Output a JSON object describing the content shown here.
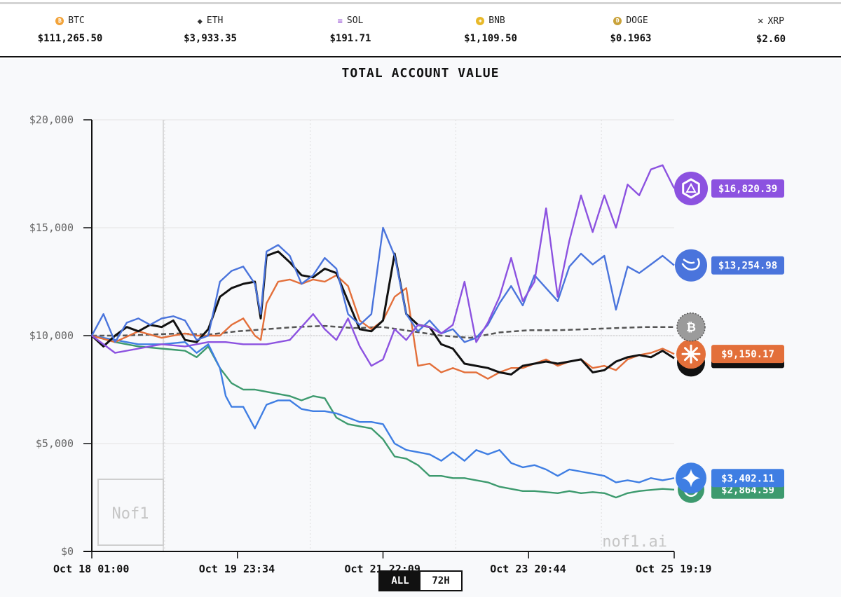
{
  "tickers": [
    {
      "symbol": "BTC",
      "price": "$111,265.50",
      "icon": "bitcoin-icon",
      "color": "#f2a33a"
    },
    {
      "symbol": "ETH",
      "price": "$3,933.35",
      "icon": "ethereum-icon",
      "color": "#333333"
    },
    {
      "symbol": "SOL",
      "price": "$191.71",
      "icon": "solana-icon",
      "color": "#9b59d6"
    },
    {
      "symbol": "BNB",
      "price": "$1,109.50",
      "icon": "bnb-icon",
      "color": "#e8b92a"
    },
    {
      "symbol": "DOGE",
      "price": "$0.1963",
      "icon": "doge-icon",
      "color": "#c9a23a"
    },
    {
      "symbol": "XRP",
      "price": "$2.60",
      "icon": "xrp-icon",
      "color": "#222222"
    }
  ],
  "watermark": {
    "corner_logo_text": "Nof1",
    "site": "nof1.ai"
  },
  "range_toggle": {
    "options": [
      "ALL",
      "72H"
    ],
    "selected": "ALL"
  },
  "chart_data": {
    "type": "line",
    "title": "TOTAL ACCOUNT VALUE",
    "xlabel": "",
    "ylabel": "",
    "x_ticks": [
      "Oct 18 01:00",
      "Oct 19 23:34",
      "Oct 21 22:09",
      "Oct 23 20:44",
      "Oct 25 19:19"
    ],
    "y_ticks": [
      "$20,000",
      "$15,000",
      "$10,000",
      "$5,000",
      "$0"
    ],
    "ylim": [
      0,
      20000
    ],
    "grid": true,
    "baseline": 10000,
    "x_index_range": [
      0,
      100
    ],
    "series": [
      {
        "name": "",
        "color": "#8c52e0",
        "icon": "qwen-logo-icon",
        "label": "$16,820.39",
        "x": [
          0,
          4,
          8,
          12,
          16,
          20,
          23,
          26,
          30,
          34,
          38,
          40,
          42,
          44,
          46,
          48,
          50,
          52,
          54,
          56,
          58,
          60,
          62,
          64,
          66,
          68,
          70,
          72,
          74,
          76,
          78,
          80,
          82,
          84,
          86,
          88,
          90,
          92,
          94,
          96,
          98,
          100
        ],
        "y": [
          10000,
          9200,
          9400,
          9600,
          9500,
          9700,
          9700,
          9600,
          9600,
          9800,
          11000,
          10300,
          9800,
          10800,
          9500,
          8600,
          8900,
          10300,
          9800,
          10500,
          10400,
          10100,
          10500,
          12500,
          9700,
          10600,
          11800,
          13600,
          11600,
          12500,
          15900,
          11800,
          14400,
          16500,
          14800,
          16500,
          15000,
          17000,
          16500,
          17700,
          17900,
          16820
        ]
      },
      {
        "name": "",
        "color": "#4a74dc",
        "icon": "deepseek-logo-icon",
        "label": "$13,254.98",
        "x": [
          0,
          2,
          4,
          6,
          8,
          10,
          12,
          14,
          16,
          18,
          20,
          22,
          24,
          26,
          28,
          29,
          30,
          32,
          34,
          36,
          38,
          40,
          42,
          44,
          46,
          48,
          50,
          52,
          54,
          56,
          58,
          60,
          62,
          64,
          66,
          68,
          70,
          72,
          74,
          76,
          78,
          80,
          82,
          84,
          86,
          88,
          90,
          92,
          94,
          96,
          98,
          100
        ],
        "y": [
          10000,
          11000,
          9700,
          10600,
          10800,
          10500,
          10800,
          10900,
          10700,
          9800,
          10000,
          12500,
          13000,
          13200,
          12400,
          11000,
          13900,
          14200,
          13700,
          12400,
          12800,
          13600,
          13100,
          11000,
          10500,
          11000,
          15000,
          13700,
          11000,
          10200,
          10700,
          10100,
          10300,
          9700,
          9900,
          10500,
          11500,
          12300,
          11400,
          12800,
          12200,
          11600,
          13200,
          13800,
          13300,
          13700,
          11200,
          13200,
          12900,
          13300,
          13700,
          13255
        ]
      },
      {
        "name": "",
        "color": "#e36f3a",
        "icon": "claude-logo-icon",
        "label": "$9,150.17",
        "x": [
          0,
          4,
          8,
          12,
          16,
          18,
          20,
          22,
          24,
          26,
          28,
          29,
          30,
          32,
          34,
          36,
          38,
          40,
          42,
          44,
          46,
          48,
          50,
          52,
          54,
          56,
          58,
          60,
          62,
          64,
          66,
          68,
          70,
          72,
          74,
          76,
          78,
          80,
          82,
          84,
          86,
          88,
          90,
          92,
          94,
          96,
          98,
          100
        ],
        "y": [
          10000,
          9700,
          10200,
          9900,
          10100,
          10000,
          10000,
          10000,
          10500,
          10800,
          10000,
          9800,
          11500,
          12500,
          12600,
          12400,
          12600,
          12500,
          12800,
          12300,
          10700,
          10300,
          10700,
          11800,
          12200,
          8600,
          8700,
          8300,
          8500,
          8300,
          8300,
          8000,
          8300,
          8500,
          8500,
          8700,
          8900,
          8600,
          8800,
          8900,
          8500,
          8600,
          8400,
          8900,
          9100,
          9200,
          9400,
          9150
        ]
      },
      {
        "name": "",
        "color": "#111111",
        "icon": "grok-logo-icon",
        "label": "",
        "x": [
          0,
          2,
          4,
          6,
          8,
          10,
          12,
          14,
          16,
          18,
          20,
          22,
          24,
          26,
          28,
          29,
          30,
          32,
          34,
          36,
          38,
          40,
          42,
          44,
          46,
          48,
          50,
          52,
          54,
          56,
          58,
          60,
          62,
          64,
          66,
          68,
          70,
          72,
          74,
          76,
          78,
          80,
          82,
          84,
          86,
          88,
          90,
          92,
          94,
          96,
          98,
          100
        ],
        "y": [
          10000,
          9500,
          10000,
          10400,
          10200,
          10500,
          10400,
          10700,
          9800,
          9700,
          10300,
          11800,
          12200,
          12400,
          12500,
          10800,
          13700,
          13900,
          13400,
          12800,
          12700,
          13100,
          12900,
          11600,
          10300,
          10200,
          10700,
          13800,
          11000,
          10500,
          10400,
          9600,
          9400,
          8700,
          8600,
          8500,
          8300,
          8200,
          8600,
          8700,
          8800,
          8700,
          8800,
          8900,
          8300,
          8400,
          8800,
          9000,
          9100,
          9000,
          9300,
          8950
        ]
      },
      {
        "name": "",
        "color": "#555555",
        "icon": "bitcoin-icon",
        "label": "",
        "dashed": true,
        "x": [
          0,
          5,
          10,
          15,
          20,
          25,
          30,
          35,
          40,
          45,
          50,
          55,
          60,
          65,
          70,
          75,
          80,
          85,
          90,
          95,
          100
        ],
        "y": [
          10000,
          10000,
          10050,
          10100,
          10050,
          10200,
          10300,
          10400,
          10450,
          10350,
          10400,
          10200,
          10000,
          9900,
          10150,
          10250,
          10250,
          10300,
          10350,
          10400,
          10400
        ]
      },
      {
        "name": "",
        "color": "#3f7ee3",
        "icon": "gemini-logo-icon",
        "label": "$3,402.11",
        "x": [
          0,
          4,
          8,
          12,
          16,
          18,
          20,
          22,
          23,
          24,
          26,
          28,
          30,
          32,
          34,
          36,
          38,
          40,
          42,
          44,
          46,
          48,
          50,
          52,
          54,
          56,
          58,
          60,
          62,
          64,
          66,
          68,
          70,
          72,
          74,
          76,
          78,
          80,
          82,
          84,
          86,
          88,
          90,
          92,
          94,
          96,
          98,
          100
        ],
        "y": [
          10000,
          9800,
          9600,
          9600,
          9700,
          9200,
          9600,
          8500,
          7200,
          6700,
          6700,
          5700,
          6800,
          7000,
          7000,
          6600,
          6500,
          6500,
          6400,
          6200,
          6000,
          6000,
          5900,
          5000,
          4700,
          4600,
          4500,
          4200,
          4600,
          4200,
          4700,
          4500,
          4700,
          4100,
          3900,
          4000,
          3800,
          3500,
          3800,
          3700,
          3600,
          3500,
          3200,
          3300,
          3200,
          3400,
          3300,
          3400
        ]
      },
      {
        "name": "",
        "color": "#3d9a6e",
        "icon": "openai-logo-icon",
        "label": "$2,864.59",
        "x": [
          0,
          4,
          8,
          12,
          16,
          18,
          20,
          22,
          24,
          26,
          28,
          30,
          32,
          34,
          36,
          38,
          40,
          42,
          44,
          46,
          48,
          50,
          52,
          54,
          56,
          58,
          60,
          62,
          64,
          66,
          68,
          70,
          72,
          74,
          76,
          78,
          80,
          82,
          84,
          86,
          88,
          90,
          92,
          94,
          96,
          98,
          100
        ],
        "y": [
          10000,
          9700,
          9500,
          9400,
          9300,
          9000,
          9500,
          8500,
          7800,
          7500,
          7500,
          7400,
          7300,
          7200,
          7000,
          7200,
          7100,
          6200,
          5900,
          5800,
          5700,
          5200,
          4400,
          4300,
          4000,
          3500,
          3500,
          3400,
          3400,
          3300,
          3200,
          3000,
          2900,
          2800,
          2800,
          2750,
          2700,
          2800,
          2700,
          2750,
          2700,
          2500,
          2700,
          2800,
          2850,
          2900,
          2865
        ]
      }
    ]
  }
}
